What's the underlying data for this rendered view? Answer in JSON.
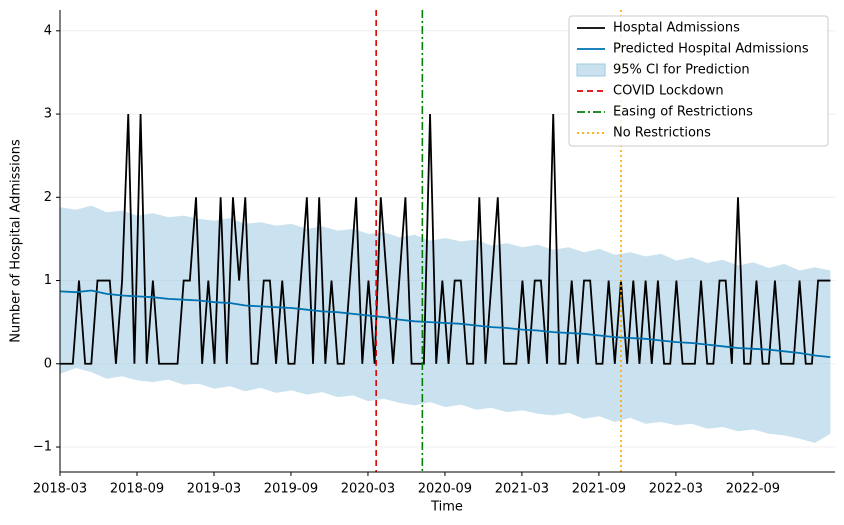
{
  "chart_data": {
    "type": "line",
    "xlabel": "Time",
    "ylabel": "Number of Hospital Admissions",
    "xlim": [
      2018.1667,
      2023.2
    ],
    "ylim": [
      -1.3,
      4.25
    ],
    "grid": true,
    "legend": "upper right",
    "xticks": [
      {
        "value": 2018.1667,
        "label": "2018-03"
      },
      {
        "value": 2018.6667,
        "label": "2018-09"
      },
      {
        "value": 2019.1667,
        "label": "2019-03"
      },
      {
        "value": 2019.6667,
        "label": "2019-09"
      },
      {
        "value": 2020.1667,
        "label": "2020-03"
      },
      {
        "value": 2020.6667,
        "label": "2020-09"
      },
      {
        "value": 2021.1667,
        "label": "2021-03"
      },
      {
        "value": 2021.6667,
        "label": "2021-09"
      },
      {
        "value": 2022.1667,
        "label": "2022-03"
      },
      {
        "value": 2022.6667,
        "label": "2022-09"
      }
    ],
    "yticks": [
      {
        "value": -1,
        "label": "−1"
      },
      0,
      1,
      2,
      3,
      4
    ],
    "series": [
      {
        "name": "Hosptal Admissions",
        "kind": "line",
        "color": "#000000",
        "x": [
          2018.17,
          2018.21,
          2018.25,
          2018.29,
          2018.33,
          2018.37,
          2018.41,
          2018.45,
          2018.49,
          2018.53,
          2018.57,
          2018.61,
          2018.65,
          2018.69,
          2018.73,
          2018.77,
          2018.81,
          2018.85,
          2018.89,
          2018.93,
          2018.97,
          2019.01,
          2019.05,
          2019.09,
          2019.13,
          2019.17,
          2019.21,
          2019.25,
          2019.29,
          2019.33,
          2019.37,
          2019.41,
          2019.45,
          2019.49,
          2019.53,
          2019.57,
          2019.61,
          2019.65,
          2019.69,
          2019.73,
          2019.77,
          2019.81,
          2019.85,
          2019.89,
          2019.93,
          2019.97,
          2020.01,
          2020.05,
          2020.09,
          2020.13,
          2020.17,
          2020.21,
          2020.25,
          2020.29,
          2020.33,
          2020.37,
          2020.41,
          2020.45,
          2020.49,
          2020.53,
          2020.57,
          2020.61,
          2020.65,
          2020.69,
          2020.73,
          2020.77,
          2020.81,
          2020.85,
          2020.89,
          2020.93,
          2020.97,
          2021.01,
          2021.05,
          2021.09,
          2021.13,
          2021.17,
          2021.21,
          2021.25,
          2021.29,
          2021.33,
          2021.37,
          2021.41,
          2021.45,
          2021.49,
          2021.53,
          2021.57,
          2021.61,
          2021.65,
          2021.69,
          2021.73,
          2021.77,
          2021.81,
          2021.85,
          2021.89,
          2021.93,
          2021.97,
          2022.01,
          2022.05,
          2022.09,
          2022.13,
          2022.17,
          2022.21,
          2022.25,
          2022.29,
          2022.33,
          2022.37,
          2022.41,
          2022.45,
          2022.49,
          2022.53,
          2022.57,
          2022.61,
          2022.65,
          2022.69,
          2022.73,
          2022.77,
          2022.81,
          2022.85,
          2022.89,
          2022.93,
          2022.97,
          2023.01,
          2023.05,
          2023.09,
          2023.13,
          2023.17
        ],
        "values": [
          0,
          0,
          0,
          1,
          0,
          0,
          1,
          1,
          1,
          0,
          1,
          3,
          0,
          3,
          0,
          1,
          0,
          0,
          0,
          0,
          1,
          1,
          2,
          0,
          1,
          0,
          2,
          0,
          2,
          1,
          2,
          0,
          0,
          1,
          1,
          0,
          1,
          0,
          0,
          1,
          2,
          0,
          2,
          0,
          1,
          0,
          0,
          1,
          2,
          0,
          1,
          0,
          2,
          1,
          0,
          1,
          2,
          0,
          0,
          0,
          3,
          0,
          1,
          0,
          1,
          1,
          0,
          0,
          2,
          0,
          1,
          2,
          0,
          0,
          0,
          1,
          0,
          1,
          1,
          0,
          3,
          0,
          0,
          1,
          0,
          1,
          1,
          0,
          0,
          1,
          0,
          1,
          0,
          1,
          0,
          1,
          0,
          1,
          0,
          0,
          1,
          0,
          0,
          0,
          1,
          0,
          0,
          1,
          1,
          0,
          2,
          0,
          0,
          1,
          0,
          0,
          1,
          0,
          0,
          0,
          1,
          0,
          0,
          1,
          1,
          1
        ]
      },
      {
        "name": "Predicted Hospital Admissions",
        "kind": "line",
        "color": "#0072b2",
        "x": [
          2018.17,
          2018.27,
          2018.37,
          2018.47,
          2018.57,
          2018.67,
          2018.77,
          2018.87,
          2018.97,
          2019.07,
          2019.17,
          2019.27,
          2019.37,
          2019.47,
          2019.57,
          2019.67,
          2019.77,
          2019.87,
          2019.97,
          2020.07,
          2020.17,
          2020.27,
          2020.37,
          2020.47,
          2020.57,
          2020.67,
          2020.77,
          2020.87,
          2020.97,
          2021.07,
          2021.17,
          2021.27,
          2021.37,
          2021.47,
          2021.57,
          2021.67,
          2021.77,
          2021.87,
          2021.97,
          2022.07,
          2022.17,
          2022.27,
          2022.37,
          2022.47,
          2022.57,
          2022.67,
          2022.77,
          2022.87,
          2022.97,
          2023.07,
          2023.17
        ],
        "values": [
          0.87,
          0.86,
          0.88,
          0.84,
          0.82,
          0.81,
          0.8,
          0.78,
          0.77,
          0.76,
          0.74,
          0.73,
          0.7,
          0.69,
          0.68,
          0.67,
          0.65,
          0.63,
          0.62,
          0.6,
          0.58,
          0.56,
          0.53,
          0.51,
          0.5,
          0.49,
          0.48,
          0.46,
          0.44,
          0.43,
          0.41,
          0.4,
          0.38,
          0.37,
          0.36,
          0.34,
          0.32,
          0.31,
          0.3,
          0.28,
          0.26,
          0.25,
          0.23,
          0.21,
          0.19,
          0.18,
          0.17,
          0.15,
          0.13,
          0.1,
          0.08
        ]
      },
      {
        "name": "95% CI for Prediction",
        "kind": "band",
        "color": "#9ecae1",
        "x": [
          2018.17,
          2018.27,
          2018.37,
          2018.47,
          2018.57,
          2018.67,
          2018.77,
          2018.87,
          2018.97,
          2019.07,
          2019.17,
          2019.27,
          2019.37,
          2019.47,
          2019.57,
          2019.67,
          2019.77,
          2019.87,
          2019.97,
          2020.07,
          2020.17,
          2020.27,
          2020.37,
          2020.47,
          2020.57,
          2020.67,
          2020.77,
          2020.87,
          2020.97,
          2021.07,
          2021.17,
          2021.27,
          2021.37,
          2021.47,
          2021.57,
          2021.67,
          2021.77,
          2021.87,
          2021.97,
          2022.07,
          2022.17,
          2022.27,
          2022.37,
          2022.47,
          2022.57,
          2022.67,
          2022.77,
          2022.87,
          2022.97,
          2023.07,
          2023.17
        ],
        "lower": [
          -0.12,
          -0.05,
          -0.1,
          -0.18,
          -0.15,
          -0.2,
          -0.22,
          -0.19,
          -0.25,
          -0.24,
          -0.3,
          -0.27,
          -0.33,
          -0.29,
          -0.35,
          -0.32,
          -0.37,
          -0.34,
          -0.4,
          -0.38,
          -0.45,
          -0.42,
          -0.47,
          -0.5,
          -0.46,
          -0.52,
          -0.49,
          -0.55,
          -0.53,
          -0.58,
          -0.56,
          -0.6,
          -0.62,
          -0.59,
          -0.66,
          -0.63,
          -0.7,
          -0.65,
          -0.72,
          -0.7,
          -0.74,
          -0.72,
          -0.78,
          -0.76,
          -0.81,
          -0.79,
          -0.84,
          -0.86,
          -0.9,
          -0.95,
          -0.84
        ],
        "upper": [
          1.88,
          1.85,
          1.9,
          1.82,
          1.84,
          1.78,
          1.81,
          1.76,
          1.78,
          1.74,
          1.72,
          1.75,
          1.68,
          1.7,
          1.66,
          1.68,
          1.62,
          1.65,
          1.6,
          1.62,
          1.56,
          1.58,
          1.52,
          1.55,
          1.48,
          1.51,
          1.47,
          1.49,
          1.42,
          1.45,
          1.4,
          1.43,
          1.37,
          1.4,
          1.34,
          1.38,
          1.31,
          1.34,
          1.29,
          1.32,
          1.24,
          1.28,
          1.21,
          1.25,
          1.18,
          1.22,
          1.15,
          1.2,
          1.12,
          1.16,
          1.12
        ]
      },
      {
        "name": "COVID Lockdown",
        "kind": "vline",
        "color": "#e00000",
        "dash": "dashed",
        "x": 2020.22
      },
      {
        "name": "Easing of Restrictions",
        "kind": "vline",
        "color": "#008000",
        "dash": "dashdot",
        "x": 2020.52
      },
      {
        "name": "No Restrictions",
        "kind": "vline",
        "color": "#ffa500",
        "dash": "dotted",
        "x": 2021.81
      }
    ]
  }
}
